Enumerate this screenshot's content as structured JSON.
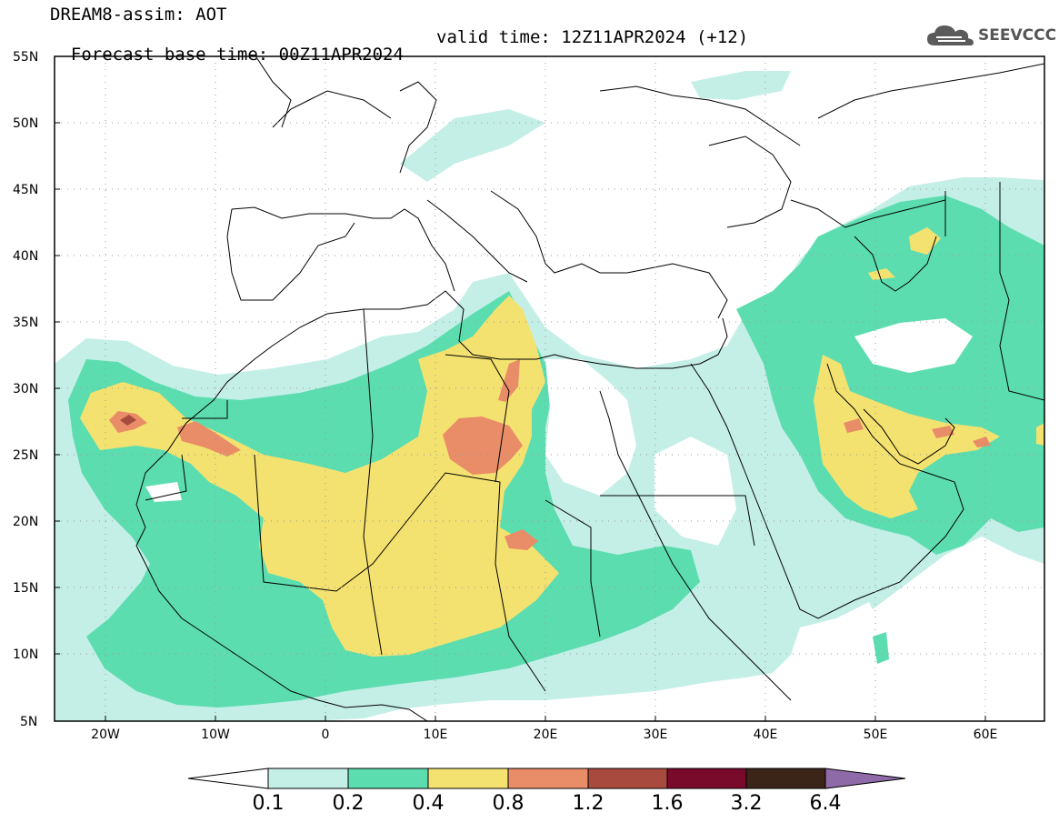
{
  "header": {
    "title": "DREAM8-assim: AOT",
    "base_time": "Forecast base time: 00Z11APR2024",
    "valid_time": "valid time: 12Z11APR2024 (+12)"
  },
  "logo": {
    "text": "SEEVCCC",
    "icon": "cloud-icon"
  },
  "map": {
    "lon_range": [
      -25,
      65
    ],
    "lat_range": [
      5,
      55
    ],
    "lat_ticks": [
      "55N",
      "50N",
      "45N",
      "40N",
      "35N",
      "30N",
      "25N",
      "20N",
      "15N",
      "10N",
      "5N"
    ],
    "lon_ticks": [
      "20W",
      "10W",
      "0",
      "10E",
      "20E",
      "30E",
      "40E",
      "50E",
      "60E"
    ],
    "grid": "dotted"
  },
  "legend": {
    "labels": [
      "0.1",
      "0.2",
      "0.4",
      "0.8",
      "1.2",
      "1.6",
      "3.2",
      "6.4"
    ],
    "colors": {
      "under": "#ffffff",
      "c1": "#c4efe7",
      "c2": "#5cddb0",
      "c3": "#f4e270",
      "c4": "#e98c68",
      "c5": "#a84a3e",
      "c6": "#7a0a2c",
      "c7": "#3b2418",
      "over": "#8e6aa8"
    }
  }
}
